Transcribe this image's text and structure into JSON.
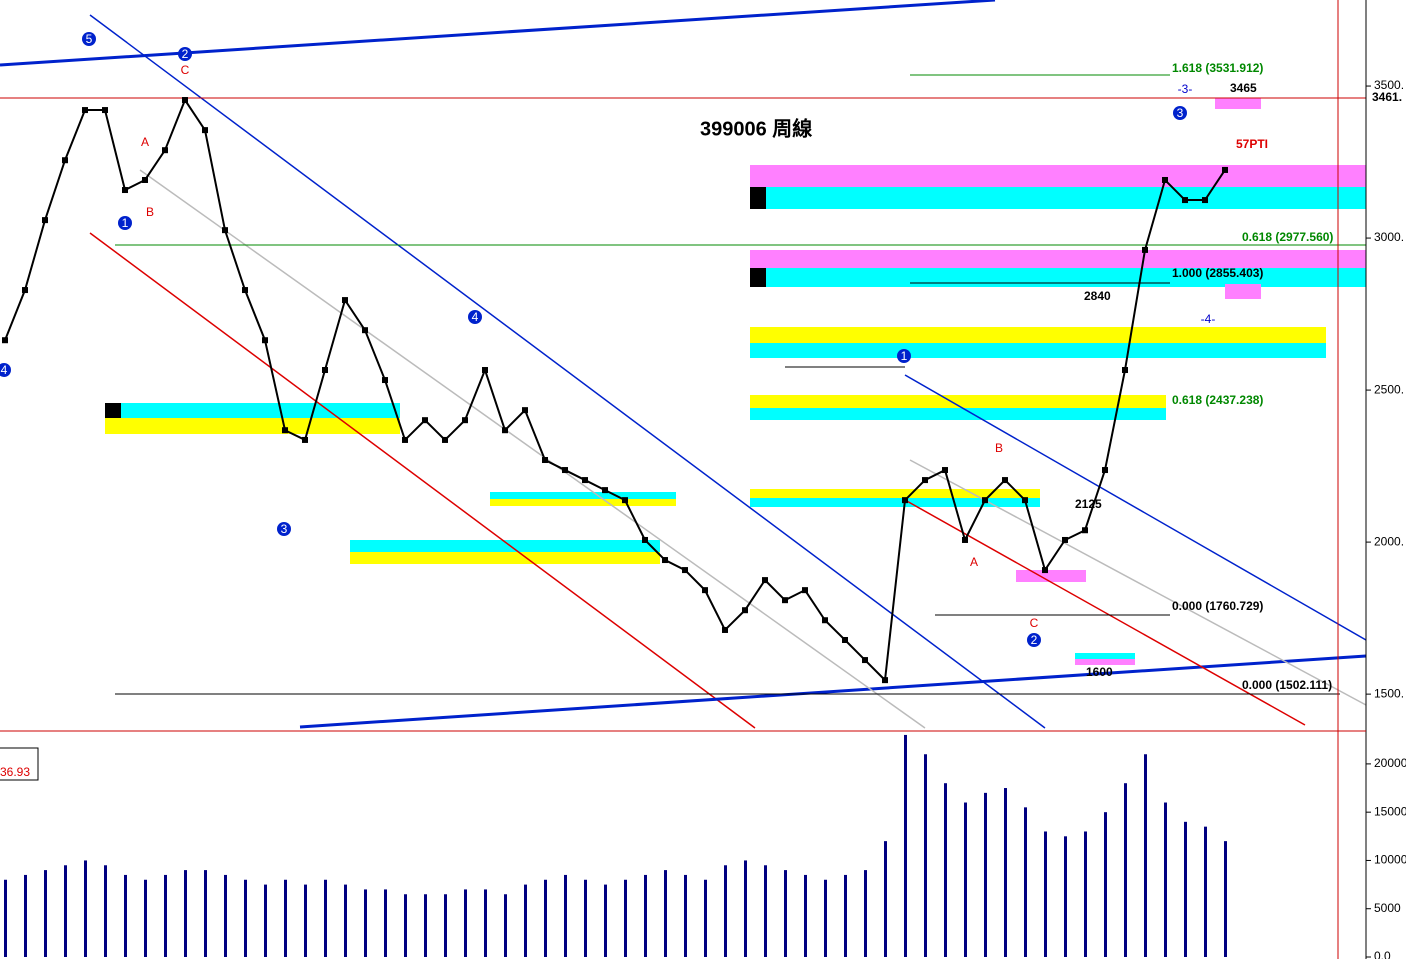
{
  "chart_data": [
    {
      "type": "line",
      "title": "399006 周線",
      "color": "#000000",
      "values": [
        2664,
        2829,
        3059,
        3256,
        3421,
        3421,
        3158,
        3191,
        3289,
        3454,
        3355,
        3026,
        2829,
        2664,
        2368,
        2336,
        2566,
        2796,
        2697,
        2533,
        2336,
        2401,
        2336,
        2401,
        2566,
        2368,
        2434,
        2270,
        2237,
        2204,
        2171,
        2138,
        2007,
        1941,
        1908,
        1842,
        1711,
        1776,
        1875,
        1809,
        1842,
        1743,
        1678,
        1612,
        1546,
        2138,
        2204,
        2237,
        2007,
        2138,
        2204,
        2138,
        1908,
        2007,
        2039,
        2237,
        2566,
        2961,
        3191,
        3125,
        3125,
        3224
      ],
      "ylim": [
        1382,
        3783
      ],
      "yticks": [
        {
          "value": 3500,
          "label": "3500."
        },
        {
          "value": 3000,
          "label": "3000."
        },
        {
          "value": 2500,
          "label": "2500."
        },
        {
          "value": 2000,
          "label": "2000."
        },
        {
          "value": 1500,
          "label": "1500."
        }
      ]
    },
    {
      "type": "bar",
      "color": "#000080",
      "values": [
        8000,
        8500,
        9000,
        9500,
        10000,
        9500,
        8500,
        8000,
        8500,
        9000,
        9000,
        8500,
        8000,
        7500,
        8000,
        7500,
        8000,
        7500,
        7000,
        7000,
        6500,
        6500,
        6500,
        7000,
        7000,
        6500,
        7500,
        8000,
        8500,
        8000,
        7500,
        8000,
        8500,
        9000,
        8500,
        8000,
        9500,
        10000,
        9500,
        9000,
        8500,
        8000,
        8500,
        9000,
        12000,
        23000,
        21000,
        18000,
        16000,
        17000,
        17500,
        15500,
        13000,
        12500,
        13000,
        15000,
        18000,
        21000,
        16000,
        14000,
        13500,
        12000
      ],
      "ylim": [
        0,
        23200
      ],
      "yticks": [
        20000,
        15000,
        10000,
        5000,
        {
          "value": 0,
          "label": "0.0"
        }
      ]
    }
  ],
  "annotations": [
    "1.618 (3531.912)",
    "0.618 (2977.560)",
    "1.000 (2855.403)",
    "0.618 (2437.238)",
    "0.000 (1760.729)",
    "0.000 (1502.111)",
    "2840",
    "3465",
    "3461.",
    "57PTI",
    "1600",
    "2125",
    "36.93"
  ],
  "waves": [
    "5",
    "2",
    "1",
    "3",
    "4",
    "4",
    "1",
    "2",
    "3",
    "C",
    "A",
    "B",
    "A",
    "C",
    "B",
    "-3-",
    "-4-"
  ]
}
